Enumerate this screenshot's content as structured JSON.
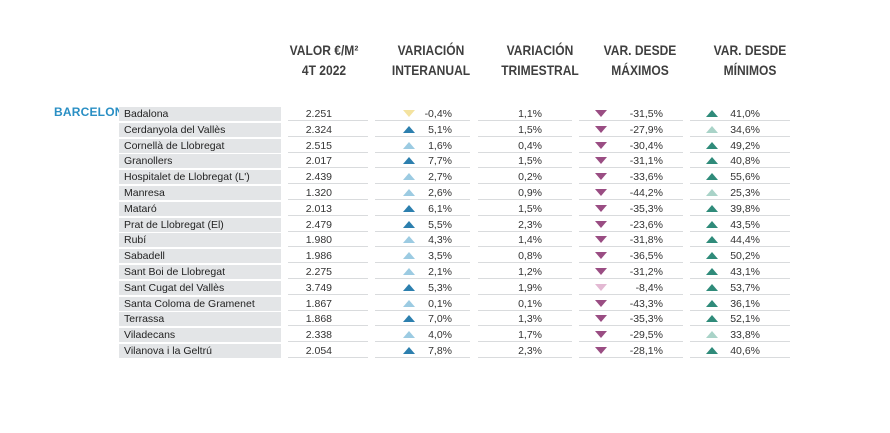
{
  "headers": {
    "valor": [
      "VALOR €/M²",
      "4T 2022"
    ],
    "interanual": [
      "VARIACIÓN",
      "INTERANUAL"
    ],
    "trimestral": [
      "VARIACIÓN",
      "TRIMESTRAL"
    ],
    "maximos": [
      "VAR. DESDE",
      "MÁXIMOS"
    ],
    "minimos": [
      "VAR. DESDE",
      "MÍNIMOS"
    ]
  },
  "region": "BARCELONA",
  "colors": {
    "up_dark": "#2c7fae",
    "up_light": "#9ccbe2",
    "neutral": "#f4e3a0",
    "down_dark": "#9a4d83",
    "down_light": "#e3b9d3",
    "min_dark": "#2f8b7a",
    "min_light": "#a9d3c8"
  },
  "rows": [
    {
      "name": "Badalona",
      "valor": "2.251",
      "interanual": "-0,4%",
      "ia_dir": "down",
      "ia_col": "neutral",
      "trimestral": "1,1%",
      "maximos": "-31,5%",
      "max_col": "down_dark",
      "minimos": "41,0%",
      "min_col": "min_dark"
    },
    {
      "name": "Cerdanyola del Vallès",
      "valor": "2.324",
      "interanual": "5,1%",
      "ia_dir": "up",
      "ia_col": "up_dark",
      "trimestral": "1,5%",
      "maximos": "-27,9%",
      "max_col": "down_dark",
      "minimos": "34,6%",
      "min_col": "min_light"
    },
    {
      "name": "Cornellà de Llobregat",
      "valor": "2.515",
      "interanual": "1,6%",
      "ia_dir": "up",
      "ia_col": "up_light",
      "trimestral": "0,4%",
      "maximos": "-30,4%",
      "max_col": "down_dark",
      "minimos": "49,2%",
      "min_col": "min_dark"
    },
    {
      "name": "Granollers",
      "valor": "2.017",
      "interanual": "7,7%",
      "ia_dir": "up",
      "ia_col": "up_dark",
      "trimestral": "1,5%",
      "maximos": "-31,1%",
      "max_col": "down_dark",
      "minimos": "40,8%",
      "min_col": "min_dark"
    },
    {
      "name": "Hospitalet de Llobregat (L')",
      "valor": "2.439",
      "interanual": "2,7%",
      "ia_dir": "up",
      "ia_col": "up_light",
      "trimestral": "0,2%",
      "maximos": "-33,6%",
      "max_col": "down_dark",
      "minimos": "55,6%",
      "min_col": "min_dark"
    },
    {
      "name": "Manresa",
      "valor": "1.320",
      "interanual": "2,6%",
      "ia_dir": "up",
      "ia_col": "up_light",
      "trimestral": "0,9%",
      "maximos": "-44,2%",
      "max_col": "down_dark",
      "minimos": "25,3%",
      "min_col": "min_light"
    },
    {
      "name": "Mataró",
      "valor": "2.013",
      "interanual": "6,1%",
      "ia_dir": "up",
      "ia_col": "up_dark",
      "trimestral": "1,5%",
      "maximos": "-35,3%",
      "max_col": "down_dark",
      "minimos": "39,8%",
      "min_col": "min_dark"
    },
    {
      "name": "Prat de Llobregat (El)",
      "valor": "2.479",
      "interanual": "5,5%",
      "ia_dir": "up",
      "ia_col": "up_dark",
      "trimestral": "2,3%",
      "maximos": "-23,6%",
      "max_col": "down_dark",
      "minimos": "43,5%",
      "min_col": "min_dark"
    },
    {
      "name": "Rubí",
      "valor": "1.980",
      "interanual": "4,3%",
      "ia_dir": "up",
      "ia_col": "up_light",
      "trimestral": "1,4%",
      "maximos": "-31,8%",
      "max_col": "down_dark",
      "minimos": "44,4%",
      "min_col": "min_dark"
    },
    {
      "name": "Sabadell",
      "valor": "1.986",
      "interanual": "3,5%",
      "ia_dir": "up",
      "ia_col": "up_light",
      "trimestral": "0,8%",
      "maximos": "-36,5%",
      "max_col": "down_dark",
      "minimos": "50,2%",
      "min_col": "min_dark"
    },
    {
      "name": "Sant Boi de Llobregat",
      "valor": "2.275",
      "interanual": "2,1%",
      "ia_dir": "up",
      "ia_col": "up_light",
      "trimestral": "1,2%",
      "maximos": "-31,2%",
      "max_col": "down_dark",
      "minimos": "43,1%",
      "min_col": "min_dark"
    },
    {
      "name": "Sant Cugat del Vallès",
      "valor": "3.749",
      "interanual": "5,3%",
      "ia_dir": "up",
      "ia_col": "up_dark",
      "trimestral": "1,9%",
      "maximos": "-8,4%",
      "max_col": "down_light",
      "minimos": "53,7%",
      "min_col": "min_dark"
    },
    {
      "name": "Santa Coloma de Gramenet",
      "valor": "1.867",
      "interanual": "0,1%",
      "ia_dir": "up",
      "ia_col": "up_light",
      "trimestral": "0,1%",
      "maximos": "-43,3%",
      "max_col": "down_dark",
      "minimos": "36,1%",
      "min_col": "min_dark"
    },
    {
      "name": "Terrassa",
      "valor": "1.868",
      "interanual": "7,0%",
      "ia_dir": "up",
      "ia_col": "up_dark",
      "trimestral": "1,3%",
      "maximos": "-35,3%",
      "max_col": "down_dark",
      "minimos": "52,1%",
      "min_col": "min_dark"
    },
    {
      "name": "Viladecans",
      "valor": "2.338",
      "interanual": "4,0%",
      "ia_dir": "up",
      "ia_col": "up_light",
      "trimestral": "1,7%",
      "maximos": "-29,5%",
      "max_col": "down_dark",
      "minimos": "33,8%",
      "min_col": "min_light"
    },
    {
      "name": "Vilanova i la Geltrú",
      "valor": "2.054",
      "interanual": "7,8%",
      "ia_dir": "up",
      "ia_col": "up_dark",
      "trimestral": "2,3%",
      "maximos": "-28,1%",
      "max_col": "down_dark",
      "minimos": "40,6%",
      "min_col": "min_dark"
    }
  ]
}
